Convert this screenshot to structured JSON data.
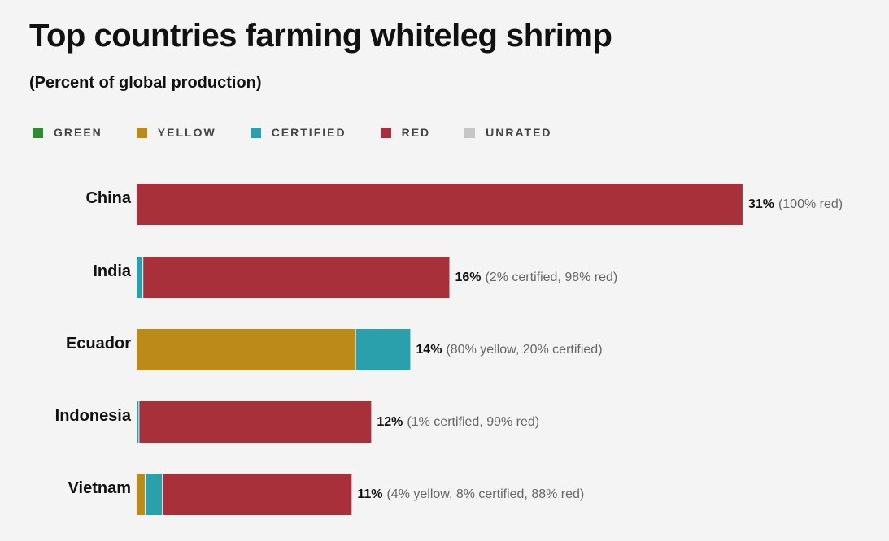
{
  "chart_data": {
    "type": "bar",
    "orientation": "horizontal",
    "stacked": true,
    "title": "Top countries farming whiteleg shrimp",
    "subtitle": "(Percent of global production)",
    "legend": [
      {
        "key": "green",
        "label": "GREEN",
        "color": "#2e8b2e"
      },
      {
        "key": "yellow",
        "label": "YELLOW",
        "color": "#bb8a18"
      },
      {
        "key": "certified",
        "label": "CERTIFIED",
        "color": "#29a0ac"
      },
      {
        "key": "red",
        "label": "RED",
        "color": "#a8303b"
      },
      {
        "key": "unrated",
        "label": "UNRATED",
        "color": "#c6c6c6"
      }
    ],
    "categories": [
      "China",
      "India",
      "Ecuador",
      "Indonesia",
      "Vietnam"
    ],
    "totals": [
      31,
      16,
      14,
      12,
      11
    ],
    "total_labels": [
      "31%",
      "16%",
      "14%",
      "12%",
      "11%"
    ],
    "breakdowns": [
      [
        {
          "key": "red",
          "share": 100
        }
      ],
      [
        {
          "key": "certified",
          "share": 2
        },
        {
          "key": "red",
          "share": 98
        }
      ],
      [
        {
          "key": "yellow",
          "share": 80
        },
        {
          "key": "certified",
          "share": 20
        }
      ],
      [
        {
          "key": "certified",
          "share": 1
        },
        {
          "key": "red",
          "share": 99
        }
      ],
      [
        {
          "key": "yellow",
          "share": 4
        },
        {
          "key": "certified",
          "share": 8
        },
        {
          "key": "red",
          "share": 88
        }
      ]
    ],
    "detail_labels": [
      "(100% red)",
      "(2% certified, 98% red)",
      "(80% yellow, 20% certified)",
      "(1% certified, 99% red)",
      "(4% yellow, 8% certified, 88% red)"
    ]
  }
}
